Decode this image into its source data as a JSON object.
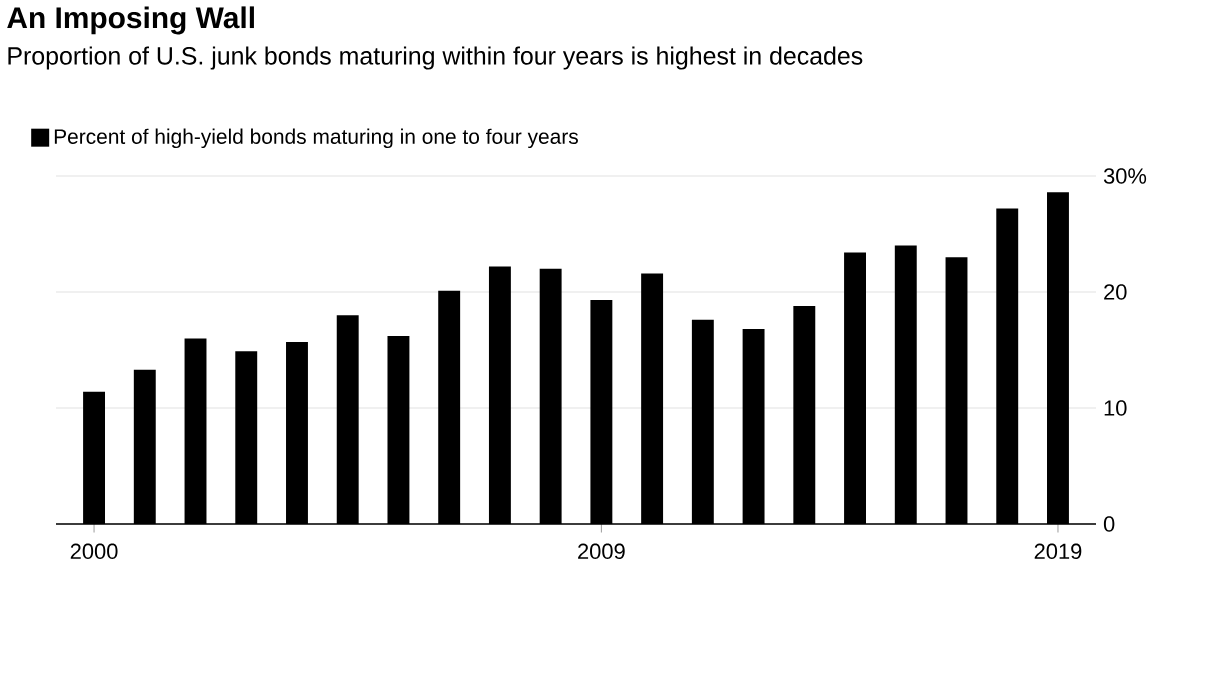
{
  "chart_data": {
    "type": "bar",
    "title": "An Imposing Wall",
    "subtitle": "Proportion of U.S. junk bonds maturing within four years is highest in decades",
    "categories": [
      "2000",
      null,
      null,
      null,
      null,
      null,
      null,
      null,
      null,
      null,
      "2009",
      null,
      null,
      null,
      null,
      null,
      null,
      null,
      null,
      "2019"
    ],
    "series": [
      {
        "name": "Percent of high-yield bonds maturing in one to four years",
        "color": "#000000",
        "values": [
          11.4,
          13.3,
          16.0,
          14.9,
          15.7,
          18.0,
          16.2,
          20.1,
          22.2,
          22.0,
          19.3,
          21.6,
          17.6,
          16.8,
          18.8,
          23.4,
          24.0,
          23.0,
          27.2,
          28.6
        ]
      }
    ],
    "ylim": [
      0,
      30
    ],
    "yticks": [
      0,
      10,
      20,
      {
        "value": 30,
        "label": "30%"
      }
    ],
    "grid": "y",
    "legend": "top left"
  }
}
